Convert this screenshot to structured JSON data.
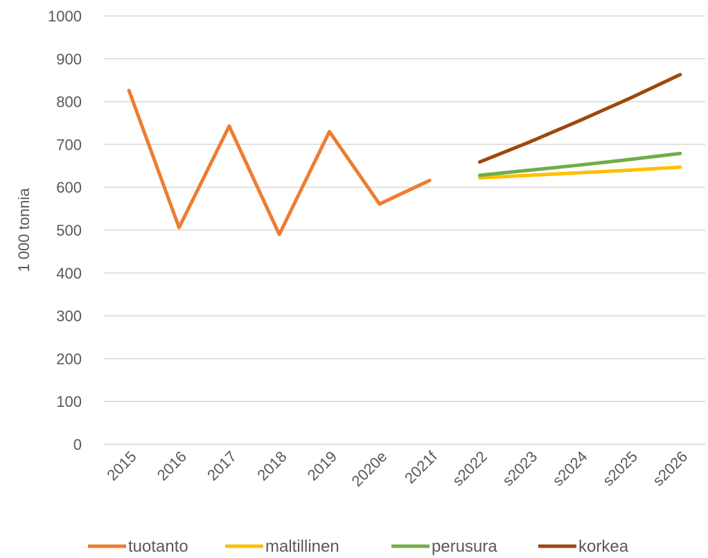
{
  "chart_data": {
    "type": "line",
    "title": "",
    "xlabel": "",
    "ylabel": "1 000 tonnia",
    "ylim": [
      0,
      1000
    ],
    "yticks": [
      "0",
      "100",
      "200",
      "300",
      "400",
      "500",
      "600",
      "700",
      "800",
      "900",
      "1000"
    ],
    "categories": [
      "2015",
      "2016",
      "2017",
      "2018",
      "2019",
      "2020e",
      "2021f",
      "s2022",
      "s2023",
      "s2024",
      "s2025",
      "s2026"
    ],
    "grid": true,
    "legend_position": "bottom",
    "series": [
      {
        "name": "tuotanto",
        "color": "#ED7D31",
        "values": [
          826,
          506,
          743,
          490,
          730,
          561,
          616,
          null,
          null,
          null,
          null,
          null
        ]
      },
      {
        "name": "maltillinen",
        "color": "#FFC000",
        "values": [
          null,
          null,
          null,
          null,
          null,
          null,
          null,
          622,
          628,
          634,
          640,
          647
        ]
      },
      {
        "name": "perusura",
        "color": "#70AD47",
        "values": [
          null,
          null,
          null,
          null,
          null,
          null,
          null,
          628,
          640,
          652,
          665,
          679
        ]
      },
      {
        "name": "korkea",
        "color": "#9E480E",
        "values": [
          null,
          null,
          null,
          null,
          null,
          null,
          null,
          659,
          706,
          756,
          808,
          863
        ]
      }
    ]
  }
}
